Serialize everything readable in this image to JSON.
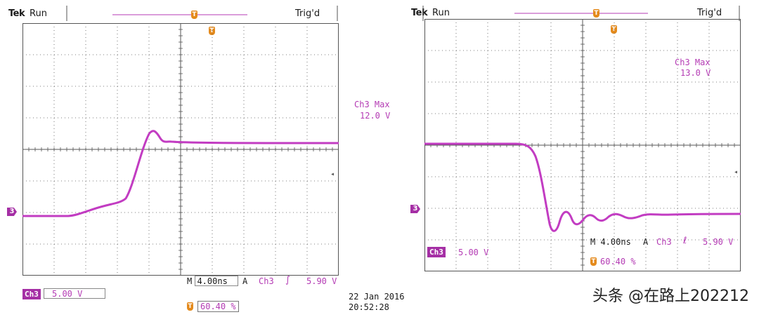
{
  "colors": {
    "trace": "#c23cc2",
    "grid": "#555555",
    "marker": "#e48a1c",
    "channel_badge": "#a52fa5"
  },
  "left": {
    "brand": "Tek",
    "status": "Run",
    "trigger_status": "Trig'd",
    "max_label": "Ch3 Max",
    "max_value": "12.0 V",
    "channel_badge": "Ch3",
    "scale": "5.00 V",
    "timebase": "M 4.00ns",
    "trigger_mode": "A",
    "trigger_channel": "Ch3",
    "trigger_slope": "rising-edge-icon",
    "trigger_level": "5.90 V",
    "trigger_position": "60.40 %",
    "date": "22 Jan  2016",
    "time": "20:52:28",
    "ground_marker": "3"
  },
  "right": {
    "brand": "Tek",
    "status": "Run",
    "trigger_status": "Trig'd",
    "max_label": "Ch3 Max",
    "max_value": "13.0 V",
    "channel_badge": "Ch3",
    "scale": "5.00 V",
    "timebase": "M 4.00ns",
    "trigger_mode": "A",
    "trigger_channel": "Ch3",
    "trigger_slope": "falling-edge-icon",
    "trigger_level": "5.90 V",
    "trigger_position": "60.40 %",
    "ground_marker": "3"
  },
  "watermark": "头条 @在路上202212"
}
